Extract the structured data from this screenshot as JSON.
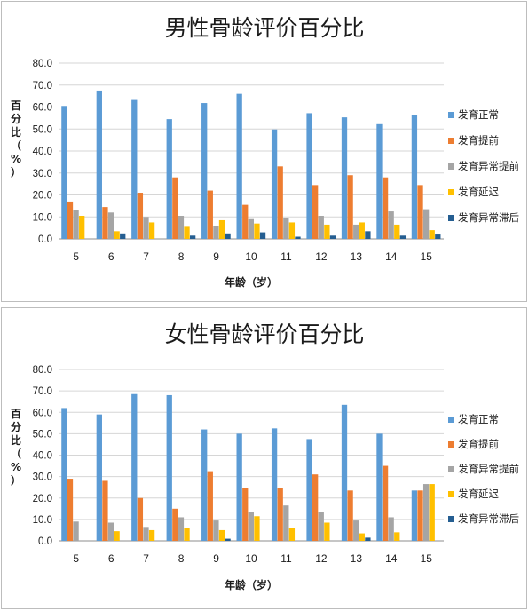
{
  "chart_data": [
    {
      "type": "bar",
      "title": "男性骨龄评价百分比",
      "xlabel": "年龄（岁）",
      "ylabel": "百分比（%）",
      "ylim": [
        0,
        80
      ],
      "yticks": [
        "0.0",
        "10.0",
        "20.0",
        "30.0",
        "40.0",
        "50.0",
        "60.0",
        "70.0",
        "80.0"
      ],
      "grid": true,
      "legend": "right",
      "categories": [
        "5",
        "6",
        "7",
        "8",
        "9",
        "10",
        "11",
        "12",
        "13",
        "14",
        "15"
      ],
      "series": [
        {
          "name": "发育正常",
          "color": "#5B9BD5",
          "values": [
            60.5,
            67.5,
            63.2,
            54.5,
            61.8,
            66.0,
            49.8,
            57.2,
            55.3,
            52.2,
            56.5
          ]
        },
        {
          "name": "发育提前",
          "color": "#ED7D31",
          "values": [
            17.0,
            14.5,
            21.0,
            28.0,
            22.0,
            15.5,
            33.0,
            24.5,
            29.0,
            28.0,
            24.5
          ]
        },
        {
          "name": "发育异常提前",
          "color": "#A5A5A5",
          "values": [
            13.0,
            12.0,
            10.0,
            10.5,
            5.8,
            9.0,
            9.5,
            10.5,
            6.5,
            12.5,
            13.5
          ]
        },
        {
          "name": "发育延迟",
          "color": "#FFC000",
          "values": [
            10.5,
            3.5,
            7.5,
            5.5,
            8.5,
            7.0,
            7.5,
            6.5,
            7.5,
            6.5,
            4.0
          ]
        },
        {
          "name": "发育异常滞后",
          "color": "#255E91",
          "values": [
            0,
            2.5,
            0,
            1.5,
            2.5,
            3.0,
            1.0,
            1.5,
            3.5,
            1.5,
            2.0
          ]
        }
      ]
    },
    {
      "type": "bar",
      "title": "女性骨龄评价百分比",
      "xlabel": "年龄（岁）",
      "ylabel": "百分比（%）",
      "ylim": [
        0,
        80
      ],
      "yticks": [
        "0.0",
        "10.0",
        "20.0",
        "30.0",
        "40.0",
        "50.0",
        "60.0",
        "70.0",
        "80.0"
      ],
      "grid": true,
      "legend": "right",
      "categories": [
        "5",
        "6",
        "7",
        "8",
        "9",
        "10",
        "11",
        "12",
        "13",
        "14",
        "15"
      ],
      "series": [
        {
          "name": "发育正常",
          "color": "#5B9BD5",
          "values": [
            62.0,
            59.0,
            68.5,
            68.0,
            52.0,
            50.0,
            52.5,
            47.5,
            63.5,
            50.0,
            23.5
          ]
        },
        {
          "name": "发育提前",
          "color": "#ED7D31",
          "values": [
            29.0,
            28.0,
            20.0,
            15.0,
            32.5,
            24.5,
            24.5,
            31.0,
            23.5,
            35.0,
            23.5
          ]
        },
        {
          "name": "发育异常提前",
          "color": "#A5A5A5",
          "values": [
            9.0,
            8.5,
            6.5,
            11.0,
            9.5,
            13.5,
            16.5,
            13.5,
            9.5,
            11.0,
            26.5
          ]
        },
        {
          "name": "发育延迟",
          "color": "#FFC000",
          "values": [
            0,
            4.5,
            5.0,
            6.0,
            5.0,
            11.5,
            6.0,
            8.5,
            3.5,
            4.0,
            26.5
          ]
        },
        {
          "name": "发育异常滞后",
          "color": "#255E91",
          "values": [
            0,
            0,
            0,
            0,
            1.0,
            0,
            0,
            0,
            1.5,
            0,
            0
          ]
        }
      ]
    }
  ]
}
